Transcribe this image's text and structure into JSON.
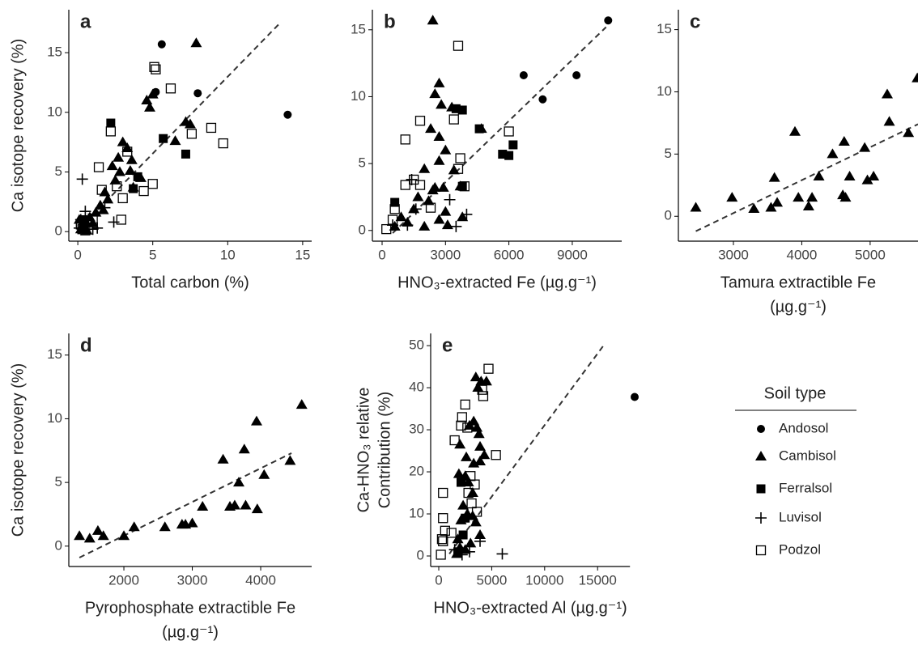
{
  "chart_data": [
    {
      "type": "scatter",
      "panel": "a",
      "ylabel": [
        "Ca isotope recovery (%)"
      ],
      "xlabel": [
        "Total carbon (%)"
      ],
      "xlim": [
        -0.6,
        15.6
      ],
      "ylim": [
        -0.8,
        18.6
      ],
      "xticks": [
        0,
        5,
        10,
        15
      ],
      "yticks": [
        0,
        5,
        10,
        15
      ],
      "legend_title": "Soil type",
      "trend": {
        "x": [
          0,
          13.5
        ],
        "y": [
          0.1,
          17.5
        ]
      },
      "series": [
        {
          "name": "Andosol",
          "marker": "circle",
          "color": "#000",
          "x": [
            5.6,
            8,
            5.2,
            14
          ],
          "y": [
            15.7,
            11.6,
            11.7,
            9.8
          ]
        },
        {
          "name": "Cambisol",
          "marker": "triangle",
          "color": "#000",
          "x": [
            7.9,
            4.6,
            5,
            4.8,
            7.2,
            7.5,
            6.5,
            3,
            3.3,
            2.7,
            3.6,
            2.3,
            2.8,
            3.5,
            4.2,
            2.5,
            1.8,
            2,
            1.5,
            1.2,
            0.8,
            0.5,
            0.3,
            0.2,
            0.6,
            1,
            1.7,
            3.7,
            0.1
          ],
          "y": [
            15.8,
            11,
            11.5,
            10.4,
            9.2,
            9,
            7.6,
            7.5,
            7,
            6.2,
            6,
            5.5,
            5,
            5.1,
            4.5,
            4.3,
            3.3,
            2.7,
            2.2,
            1.6,
            1.2,
            0.9,
            0.5,
            0.2,
            0.1,
            0.7,
            1.8,
            3.7,
            1.0
          ]
        },
        {
          "name": "Ferralsol",
          "marker": "square",
          "color": "#000",
          "x": [
            2.2,
            5.7,
            7.2,
            4,
            3.7,
            0.4
          ],
          "y": [
            9.1,
            7.8,
            6.5,
            4.6,
            3.6,
            1
          ]
        },
        {
          "name": "Luvisol",
          "marker": "plus",
          "color": "#000",
          "x": [
            0.3,
            0.2,
            0.5,
            1,
            1.3,
            2.4,
            0.7,
            1.8,
            0.1
          ],
          "y": [
            4.4,
            1,
            1.7,
            0.2,
            0.3,
            0.8,
            0.5,
            2,
            0.3
          ]
        },
        {
          "name": "Podzol",
          "marker": "open-square",
          "color": "#000",
          "x": [
            5.1,
            5.2,
            6.2,
            2.2,
            3.3,
            8.9,
            7.6,
            9.7,
            1.4,
            5,
            4.4,
            2.6,
            3,
            1.6,
            2.9,
            0.3,
            0.5,
            1,
            0.2
          ],
          "y": [
            13.8,
            13.6,
            12,
            8.4,
            6.7,
            8.7,
            8.2,
            7.4,
            5.4,
            4,
            3.4,
            3.8,
            2.8,
            3.5,
            1,
            0.2,
            0.1,
            1.1,
            0.6
          ]
        }
      ]
    },
    {
      "type": "scatter",
      "panel": "b",
      "xlabel": [
        "HNO₃-extracted Fe (µg.g⁻¹)"
      ],
      "xlim": [
        -460,
        11340
      ],
      "ylim": [
        -0.8,
        16.5
      ],
      "xticks": [
        0,
        3000,
        6000,
        9000
      ],
      "yticks": [
        0,
        5,
        10,
        15
      ],
      "trend": {
        "x": [
          500,
          10600
        ],
        "y": [
          -0.2,
          15.2
        ]
      },
      "series": [
        {
          "name": "Andosol",
          "marker": "circle",
          "color": "#000",
          "x": [
            10700,
            6700,
            9200,
            7600
          ],
          "y": [
            15.7,
            11.6,
            11.6,
            9.8
          ]
        },
        {
          "name": "Cambisol",
          "marker": "triangle",
          "color": "#000",
          "x": [
            2400,
            2700,
            2500,
            2800,
            3300,
            2300,
            2700,
            3000,
            2700,
            2000,
            3400,
            2900,
            2400,
            1700,
            2200,
            1500,
            3000,
            900,
            1200,
            2700,
            3100,
            600,
            3800,
            2000,
            3700,
            4700,
            2500
          ],
          "y": [
            15.7,
            11,
            10.2,
            9.4,
            9.2,
            7.6,
            7,
            6,
            5.2,
            4.6,
            4.5,
            3.2,
            3,
            2.5,
            2.2,
            1.6,
            1.4,
            1,
            0.6,
            0.8,
            0.4,
            0.3,
            1,
            0.3,
            3.3,
            7.6,
            3.2
          ]
        },
        {
          "name": "Ferralsol",
          "marker": "square",
          "color": "#000",
          "x": [
            4600,
            3500,
            3800,
            5700,
            6000,
            6200,
            600,
            3800
          ],
          "y": [
            7.6,
            9.1,
            9,
            5.7,
            5.6,
            6.4,
            2.1,
            3.3
          ]
        },
        {
          "name": "Luvisol",
          "marker": "plus",
          "color": "#000",
          "x": [
            1400,
            1600,
            1200,
            3500,
            3200,
            500,
            4000
          ],
          "y": [
            3.8,
            1.6,
            0.4,
            0.3,
            2.3,
            0.4,
            1.2
          ]
        },
        {
          "name": "Podzol",
          "marker": "open-square",
          "color": "#000",
          "x": [
            3600,
            6000,
            1800,
            3400,
            1100,
            3700,
            3600,
            1500,
            1100,
            600,
            500,
            200,
            2300,
            1800,
            3900
          ],
          "y": [
            13.8,
            7.4,
            8.2,
            8.3,
            6.8,
            5.4,
            4.6,
            3.8,
            3.4,
            1.6,
            0.8,
            0.1,
            1.7,
            3.4,
            3.3
          ]
        }
      ]
    },
    {
      "type": "scatter",
      "panel": "c",
      "xlabel": [
        "Tamura extractible Fe",
        "(µg.g⁻¹)"
      ],
      "xlim": [
        2195,
        5700
      ],
      "ylim": [
        -2.0,
        16.6
      ],
      "xticks": [
        3000,
        4000,
        5000
      ],
      "yticks": [
        0,
        5,
        10,
        15
      ],
      "trend": {
        "x": [
          2450,
          5700
        ],
        "y": [
          -1.2,
          7.4
        ]
      },
      "series": [
        {
          "name": "Cambisol",
          "marker": "triangle",
          "color": "#000",
          "x": [
            2450,
            2980,
            3300,
            3550,
            3600,
            3640,
            3900,
            3950,
            4100,
            4150,
            4250,
            4450,
            4600,
            4620,
            4640,
            4700,
            4920,
            4960,
            5050,
            5250,
            5280,
            5560,
            5690
          ],
          "y": [
            0.7,
            1.5,
            0.6,
            0.7,
            3.1,
            1.1,
            6.8,
            1.5,
            0.8,
            1.5,
            3.2,
            5,
            1.7,
            6,
            1.5,
            3.2,
            5.5,
            2.9,
            3.2,
            9.8,
            7.6,
            6.7,
            11.1
          ]
        }
      ]
    },
    {
      "type": "scatter",
      "panel": "d",
      "ylabel": [
        "Ca isotope recovery (%)"
      ],
      "xlabel": [
        "Pyrophosphate extractible Fe",
        "(µg.g⁻¹)"
      ],
      "xlim": [
        1195,
        4745
      ],
      "ylim": [
        -1.6,
        16.7
      ],
      "xticks": [
        2000,
        3000,
        4000
      ],
      "yticks": [
        0,
        5,
        10,
        15
      ],
      "trend": {
        "x": [
          1350,
          4450
        ],
        "y": [
          -0.9,
          7.3
        ]
      },
      "series": [
        {
          "name": "Cambisol",
          "marker": "triangle",
          "color": "#000",
          "x": [
            1350,
            1500,
            1620,
            1700,
            2000,
            2150,
            2600,
            2850,
            2900,
            3000,
            3150,
            3450,
            3550,
            3620,
            3680,
            3760,
            3780,
            3940,
            3950,
            4050,
            4430,
            4600
          ],
          "y": [
            0.8,
            0.6,
            1.2,
            0.8,
            0.8,
            1.5,
            1.5,
            1.7,
            1.7,
            1.8,
            3.1,
            6.8,
            3.1,
            3.2,
            5,
            7.6,
            3.2,
            9.8,
            2.9,
            5.6,
            6.7,
            11.1
          ]
        }
      ]
    },
    {
      "type": "scatter",
      "panel": "e",
      "ylabel": [
        "Ca-HNO₃ relative",
        "Contribution (%)"
      ],
      "xlabel": [
        "HNO₃-extracted Al (µg.g⁻¹)"
      ],
      "xlim": [
        -765,
        22400
      ],
      "ylim": [
        -2.5,
        52.9
      ],
      "xticks": [
        0,
        5000,
        10000,
        15000
      ],
      "yticks": [
        0,
        10,
        20,
        30,
        40,
        50
      ],
      "trend": {
        "x": [
          1000,
          15700
        ],
        "y": [
          0.5,
          50.5
        ]
      },
      "series": [
        {
          "name": "Andosol",
          "marker": "circle",
          "color": "#000",
          "x": [
            18500
          ],
          "y": [
            37.8
          ]
        },
        {
          "name": "Cambisol",
          "marker": "triangle",
          "color": "#000",
          "x": [
            3500,
            4000,
            4500,
            3700,
            3300,
            2900,
            3600,
            3800,
            3900,
            4300,
            3900,
            3300,
            2600,
            2000,
            1900,
            2500,
            2800,
            3200,
            2300,
            2700,
            3200,
            2100,
            3500,
            1800,
            2000,
            2500,
            3000,
            1700,
            3900
          ],
          "y": [
            42.5,
            41.5,
            41.5,
            40,
            32,
            31,
            30.5,
            29,
            26,
            24,
            22.5,
            22,
            23.5,
            26.5,
            19.5,
            19,
            17.5,
            15,
            12,
            10,
            9.5,
            8.5,
            8,
            4,
            2,
            1.5,
            3,
            0.5,
            5
          ]
        },
        {
          "name": "Ferralsol",
          "marker": "square",
          "color": "#000",
          "x": [
            2100,
            2500,
            2300,
            1800
          ],
          "y": [
            17.5,
            9,
            5,
            1
          ]
        },
        {
          "name": "Luvisol",
          "marker": "plus",
          "color": "#000",
          "x": [
            6000,
            3900,
            2900,
            1500,
            2200
          ],
          "y": [
            0.5,
            3.5,
            1,
            1.5,
            0.3
          ]
        },
        {
          "name": "Podzol",
          "marker": "open-square",
          "color": "#000",
          "x": [
            4700,
            4100,
            4200,
            2500,
            2200,
            2100,
            2700,
            1500,
            5400,
            3000,
            3400,
            2800,
            400,
            3100,
            3600,
            400,
            600,
            300,
            200,
            400,
            1200
          ],
          "y": [
            44.5,
            39.5,
            38,
            36,
            33,
            31,
            30.5,
            27.5,
            24,
            19,
            17,
            15,
            15,
            12.5,
            10.5,
            9,
            6,
            4,
            0.3,
            3.5,
            5.5
          ]
        }
      ]
    }
  ]
}
